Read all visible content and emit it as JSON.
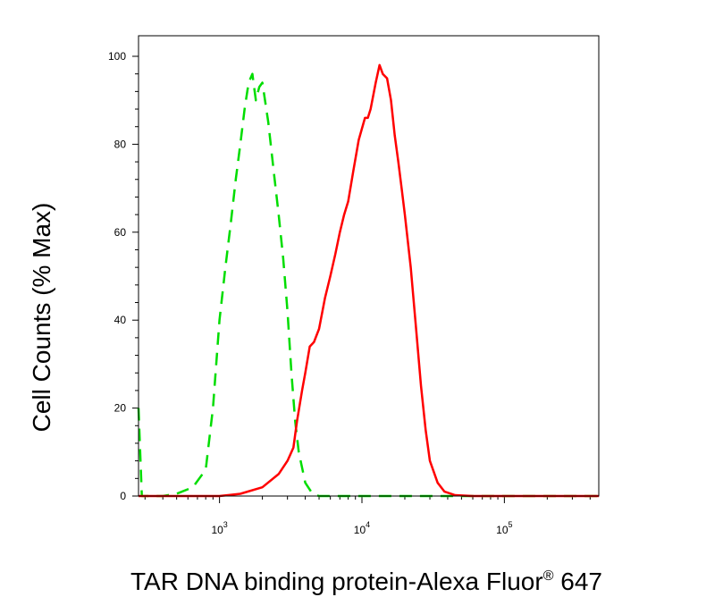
{
  "chart_data": {
    "type": "area",
    "title": "",
    "xlabel": "TAR DNA binding protein-Alexa Fluor",
    "xlabel_mark": "®",
    "xlabel_suffix": " 647",
    "ylabel": "Cell Counts (% Max)",
    "x_scale": "log",
    "xlim": [
      270,
      460000
    ],
    "ylim": [
      0,
      100
    ],
    "y_ticks": [
      0,
      20,
      40,
      60,
      80,
      100
    ],
    "y_tick_labels": [
      "0",
      "20",
      "40",
      "60",
      "80",
      "100"
    ],
    "x_ticks": [
      1000,
      10000,
      100000
    ],
    "x_tick_labels": [
      {
        "base": "10",
        "exp": "3"
      },
      {
        "base": "10",
        "exp": "4"
      },
      {
        "base": "10",
        "exp": "5"
      }
    ],
    "grid": false,
    "legend": "none",
    "series": [
      {
        "color": "#00dd00",
        "line_style": "dashed",
        "points": [
          [
            270,
            20
          ],
          [
            285,
            0
          ],
          [
            300,
            0
          ],
          [
            400,
            0
          ],
          [
            500,
            0.5
          ],
          [
            650,
            2
          ],
          [
            800,
            6
          ],
          [
            900,
            20
          ],
          [
            1000,
            40
          ],
          [
            1100,
            52
          ],
          [
            1200,
            62
          ],
          [
            1300,
            72
          ],
          [
            1400,
            80
          ],
          [
            1500,
            88
          ],
          [
            1600,
            94
          ],
          [
            1700,
            96
          ],
          [
            1800,
            90
          ],
          [
            1900,
            93
          ],
          [
            2000,
            94
          ],
          [
            2200,
            85
          ],
          [
            2400,
            74
          ],
          [
            2600,
            64
          ],
          [
            2800,
            54
          ],
          [
            3000,
            42
          ],
          [
            3200,
            28
          ],
          [
            3400,
            17
          ],
          [
            3600,
            10
          ],
          [
            4000,
            3
          ],
          [
            4500,
            0.5
          ],
          [
            5000,
            0
          ],
          [
            10000,
            0
          ],
          [
            100000,
            0
          ],
          [
            460000,
            0
          ]
        ]
      },
      {
        "color": "#ff0000",
        "line_style": "solid",
        "points": [
          [
            270,
            0
          ],
          [
            1000,
            0
          ],
          [
            1400,
            0.5
          ],
          [
            2000,
            2
          ],
          [
            2600,
            5
          ],
          [
            3000,
            8
          ],
          [
            3300,
            11
          ],
          [
            3500,
            17
          ],
          [
            3800,
            24
          ],
          [
            4000,
            28
          ],
          [
            4300,
            34
          ],
          [
            4600,
            35
          ],
          [
            5000,
            38
          ],
          [
            5500,
            45
          ],
          [
            6000,
            50
          ],
          [
            6500,
            55
          ],
          [
            7000,
            60
          ],
          [
            7500,
            64
          ],
          [
            8000,
            67
          ],
          [
            8700,
            74
          ],
          [
            9500,
            81
          ],
          [
            10500,
            86
          ],
          [
            11000,
            86
          ],
          [
            11500,
            88
          ],
          [
            12500,
            94
          ],
          [
            13300,
            98
          ],
          [
            14000,
            96
          ],
          [
            15000,
            95
          ],
          [
            16000,
            90
          ],
          [
            17000,
            82
          ],
          [
            18000,
            76
          ],
          [
            19000,
            70
          ],
          [
            20000,
            64
          ],
          [
            22000,
            52
          ],
          [
            24000,
            38
          ],
          [
            26000,
            25
          ],
          [
            28000,
            15
          ],
          [
            30000,
            8
          ],
          [
            34000,
            3
          ],
          [
            38000,
            1
          ],
          [
            45000,
            0.2
          ],
          [
            60000,
            0
          ],
          [
            100000,
            0
          ],
          [
            460000,
            0
          ]
        ]
      }
    ]
  }
}
